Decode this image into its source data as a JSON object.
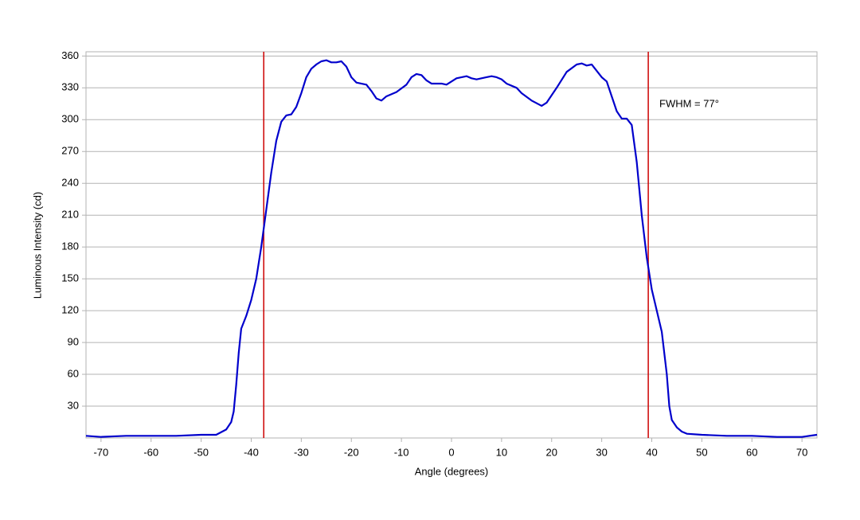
{
  "chart_data": {
    "type": "line",
    "x_label": "Angle (degrees)",
    "y_label": "Luminous Intensity (cd)",
    "annotation": "FWHM = 77°",
    "vlines": [
      -37.5,
      39.3
    ],
    "vline_color": "#cc0000",
    "xlim": [
      -73,
      73
    ],
    "xticks": [
      -70,
      -60,
      -50,
      -40,
      -30,
      -20,
      -10,
      0,
      10,
      20,
      30,
      40,
      50,
      60,
      70
    ],
    "ylim": [
      0,
      364
    ],
    "yticks": [
      30,
      60,
      90,
      120,
      150,
      180,
      210,
      240,
      270,
      300,
      330,
      360
    ],
    "grid": true,
    "series": [
      {
        "name": "Luminous Intensity",
        "color": "#0000cc",
        "x": [
          -73,
          -70,
          -65,
          -60,
          -55,
          -50,
          -47,
          -45,
          -44,
          -43.5,
          -43,
          -42.5,
          -42,
          -41,
          -40,
          -39,
          -38,
          -37,
          -36,
          -35,
          -34,
          -33,
          -32,
          -31,
          -30,
          -29,
          -28,
          -27,
          -26,
          -25,
          -24,
          -23,
          -22,
          -21,
          -20,
          -19,
          -17,
          -16,
          -15,
          -14,
          -13,
          -11,
          -9,
          -8,
          -7,
          -6,
          -5,
          -4,
          -2,
          -1,
          0,
          1,
          3,
          4,
          5,
          7,
          8,
          9,
          10,
          11,
          13,
          14,
          16,
          18,
          19,
          21,
          23,
          25,
          26,
          27,
          28,
          29,
          30,
          31,
          32,
          33,
          34,
          35,
          36,
          37,
          38,
          39,
          40,
          41,
          42,
          43,
          43.5,
          44,
          45,
          46,
          47,
          50,
          55,
          60,
          65,
          70,
          73
        ],
        "values": [
          2,
          1,
          2,
          2,
          2,
          3,
          3,
          8,
          15,
          25,
          50,
          80,
          103,
          115,
          130,
          150,
          180,
          215,
          250,
          280,
          298,
          304,
          305,
          312,
          325,
          340,
          348,
          352,
          355,
          356,
          354,
          354,
          355,
          350,
          340,
          335,
          333,
          327,
          320,
          318,
          322,
          326,
          333,
          340,
          343,
          342,
          337,
          334,
          334,
          333,
          336,
          339,
          341,
          339,
          338,
          340,
          341,
          340,
          338,
          334,
          330,
          325,
          318,
          313,
          316,
          330,
          345,
          352,
          353,
          351,
          352,
          346,
          340,
          336,
          322,
          308,
          301,
          301,
          295,
          260,
          210,
          170,
          140,
          120,
          100,
          60,
          30,
          17,
          10,
          6,
          4,
          3,
          2,
          2,
          1,
          1,
          3
        ]
      }
    ]
  }
}
